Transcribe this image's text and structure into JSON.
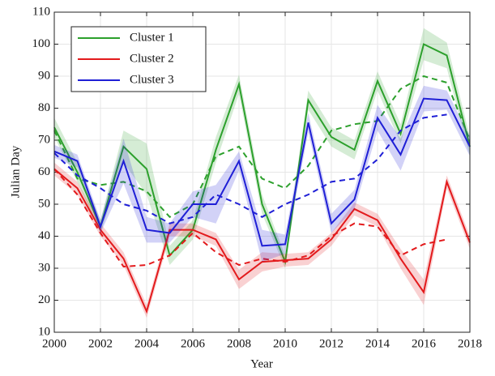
{
  "chart_data": {
    "type": "line",
    "x_label": "Year",
    "y_label": "Julian Day",
    "x": [
      2000,
      2001,
      2002,
      2003,
      2004,
      2005,
      2006,
      2007,
      2008,
      2009,
      2010,
      2011,
      2012,
      2013,
      2014,
      2015,
      2016,
      2017,
      2018
    ],
    "series": [
      {
        "name": "Cluster 1",
        "color": "#2ca02c",
        "values": [
          74,
          60,
          43,
          68,
          61,
          34,
          42,
          67,
          87.5,
          50,
          32,
          82.5,
          71,
          67,
          88.5,
          72,
          100,
          96.5,
          68
        ],
        "error": [
          3,
          3,
          2,
          5,
          8,
          3,
          3,
          4,
          3,
          3,
          2,
          3,
          3,
          3,
          3,
          3,
          5,
          4,
          3
        ],
        "trend": [
          73,
          58,
          56,
          57,
          54,
          46,
          50,
          65,
          68,
          58,
          55,
          62,
          73,
          75,
          76,
          86,
          90,
          88,
          70
        ]
      },
      {
        "name": "Cluster 2",
        "color": "#e31a1c",
        "values": [
          61,
          55,
          42,
          33,
          16.5,
          42,
          42,
          39,
          26.5,
          32,
          32.5,
          33,
          39,
          48.5,
          45,
          33,
          22.5,
          57,
          38
        ],
        "error": [
          2,
          2,
          2,
          2,
          2,
          2,
          2,
          2,
          3,
          3,
          2,
          2,
          2,
          2,
          2,
          3,
          4,
          2,
          2
        ],
        "trend": [
          61,
          53,
          41,
          30.5,
          31,
          34,
          41,
          35,
          31,
          33,
          32,
          34,
          40,
          44,
          43,
          34,
          37.5,
          39,
          null
        ]
      },
      {
        "name": "Cluster 3",
        "color": "#1f1fd6",
        "values": [
          66.5,
          63.5,
          43,
          63.5,
          42,
          41,
          50,
          50,
          63.5,
          37,
          37.5,
          75.5,
          44,
          51.5,
          77,
          65.5,
          83,
          82.5,
          68
        ],
        "error": [
          2,
          2,
          2,
          7,
          4,
          3,
          4,
          6,
          3,
          5,
          3,
          3,
          3,
          3,
          4,
          5,
          4,
          3,
          3
        ],
        "trend": [
          66,
          59,
          55,
          50,
          48,
          44,
          46,
          53,
          50,
          46,
          50,
          53,
          57,
          58,
          64,
          73,
          77,
          78,
          null
        ]
      }
    ],
    "xlim": [
      2000,
      2018
    ],
    "xticks": [
      2000,
      2002,
      2004,
      2006,
      2008,
      2010,
      2012,
      2014,
      2016,
      2018
    ],
    "ylim": [
      10,
      110
    ],
    "yticks": [
      10,
      20,
      30,
      40,
      50,
      60,
      70,
      80,
      90,
      100,
      110
    ],
    "grid": true,
    "legend": "upper-left"
  }
}
